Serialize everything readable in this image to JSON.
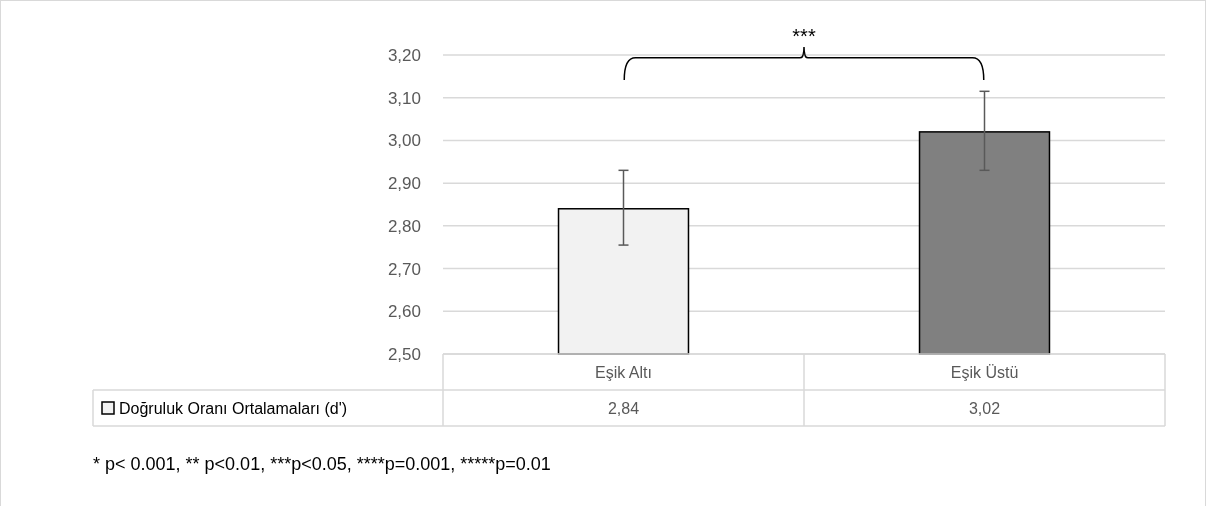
{
  "chart_data": {
    "type": "bar",
    "categories": [
      "Eşik Altı",
      "Eşik Üstü"
    ],
    "series": [
      {
        "name": "Doğruluk Oranı Ortalamaları (d')",
        "colors": [
          "#f2f2f2",
          "#808080"
        ],
        "values": [
          2.84,
          3.02
        ],
        "value_labels": [
          "2,84",
          "3,02"
        ],
        "errors": [
          [
            2.755,
            2.93
          ],
          [
            2.93,
            3.115
          ]
        ]
      }
    ],
    "ylim": [
      2.5,
      3.2
    ],
    "yticks": [
      {
        "value": 2.5,
        "label": "2,50"
      },
      {
        "value": 2.6,
        "label": "2,60"
      },
      {
        "value": 2.7,
        "label": "2,70"
      },
      {
        "value": 2.8,
        "label": "2,80"
      },
      {
        "value": 2.9,
        "label": "2,90"
      },
      {
        "value": 3.0,
        "label": "3,00"
      },
      {
        "value": 3.1,
        "label": "3,10"
      },
      {
        "value": 3.2,
        "label": "3,20"
      }
    ],
    "grid": "y",
    "legend": "bottom left",
    "annotations": [
      "***",
      "* p< 0.001, ** p<0.01, ***p<0.05, ****p=0.001, *****p=0.01"
    ]
  }
}
